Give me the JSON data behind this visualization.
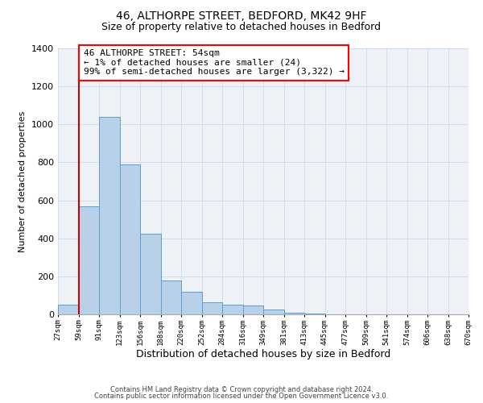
{
  "title": "46, ALTHORPE STREET, BEDFORD, MK42 9HF",
  "subtitle": "Size of property relative to detached houses in Bedford",
  "xlabel": "Distribution of detached houses by size in Bedford",
  "ylabel": "Number of detached properties",
  "bar_values": [
    50,
    570,
    1040,
    790,
    425,
    180,
    120,
    65,
    50,
    45,
    25,
    10,
    5,
    2,
    1,
    0,
    0,
    0,
    0,
    0
  ],
  "bar_labels": [
    "27sqm",
    "59sqm",
    "91sqm",
    "123sqm",
    "156sqm",
    "188sqm",
    "220sqm",
    "252sqm",
    "284sqm",
    "316sqm",
    "349sqm",
    "381sqm",
    "413sqm",
    "445sqm",
    "477sqm",
    "509sqm",
    "541sqm",
    "574sqm",
    "606sqm",
    "638sqm",
    "670sqm"
  ],
  "bar_color": "#b8d0e8",
  "bar_edge_color": "#5a9fd4",
  "ylim": [
    0,
    1400
  ],
  "yticks": [
    0,
    200,
    400,
    600,
    800,
    1000,
    1200,
    1400
  ],
  "marker_color": "#cc0000",
  "annotation_title": "46 ALTHORPE STREET: 54sqm",
  "annotation_line1": "← 1% of detached houses are smaller (24)",
  "annotation_line2": "99% of semi-detached houses are larger (3,322) →",
  "footer1": "Contains HM Land Registry data © Crown copyright and database right 2024.",
  "footer2": "Contains public sector information licensed under the Open Government Licence v3.0.",
  "background_color": "#eef2f7",
  "grid_color": "#c8d8ea"
}
